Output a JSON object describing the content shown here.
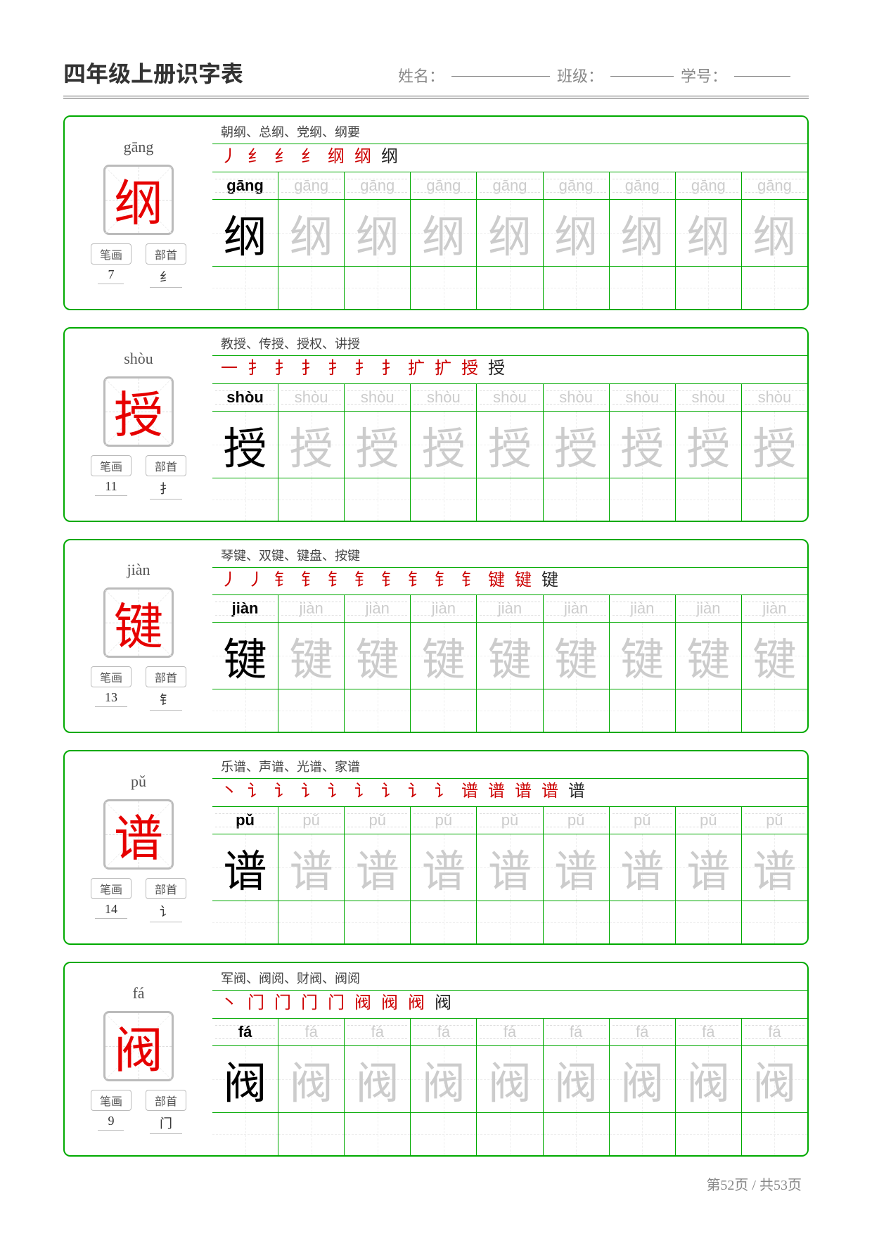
{
  "header": {
    "title": "四年级上册识字表",
    "name_label": "姓名：",
    "class_label": "班级：",
    "id_label": "学号："
  },
  "meta_labels": {
    "strokes": "笔画",
    "radical": "部首"
  },
  "cards": [
    {
      "pinyin": "gāng",
      "char": "纲",
      "stroke_count": "7",
      "radical": "纟",
      "examples": "朝纲、总纲、党纲、纲要",
      "stroke_partials": "丿 纟 纟 纟 纲 纲 纲"
    },
    {
      "pinyin": "shòu",
      "char": "授",
      "stroke_count": "11",
      "radical": "扌",
      "examples": "教授、传授、授权、讲授",
      "stroke_partials": "一 扌 扌 扌 扌 扌 扌 扩 扩 授 授"
    },
    {
      "pinyin": "jiàn",
      "char": "键",
      "stroke_count": "13",
      "radical": "钅",
      "examples": "琴键、双键、键盘、按键",
      "stroke_partials": "丿 丿 钅 钅 钅 钅 钅 钅 钅 钅 键 键 键"
    },
    {
      "pinyin": "pǔ",
      "char": "谱",
      "stroke_count": "14",
      "radical": "讠",
      "examples": "乐谱、声谱、光谱、家谱",
      "stroke_partials": "丶 讠 讠 讠 讠 讠 讠 讠 讠 谱 谱 谱 谱 谱"
    },
    {
      "pinyin": "fá",
      "char": "阀",
      "stroke_count": "9",
      "radical": "门",
      "examples": "军阀、阀阅、财阀、阀阅",
      "stroke_partials": "丶 门 门 门 门 阀 阀 阀 阀"
    }
  ],
  "footer": "第52页 / 共53页",
  "practice_columns": 9,
  "colors": {
    "accent": "#00aa00",
    "char_red": "#e60000",
    "trace_grey": "#cccccc"
  }
}
